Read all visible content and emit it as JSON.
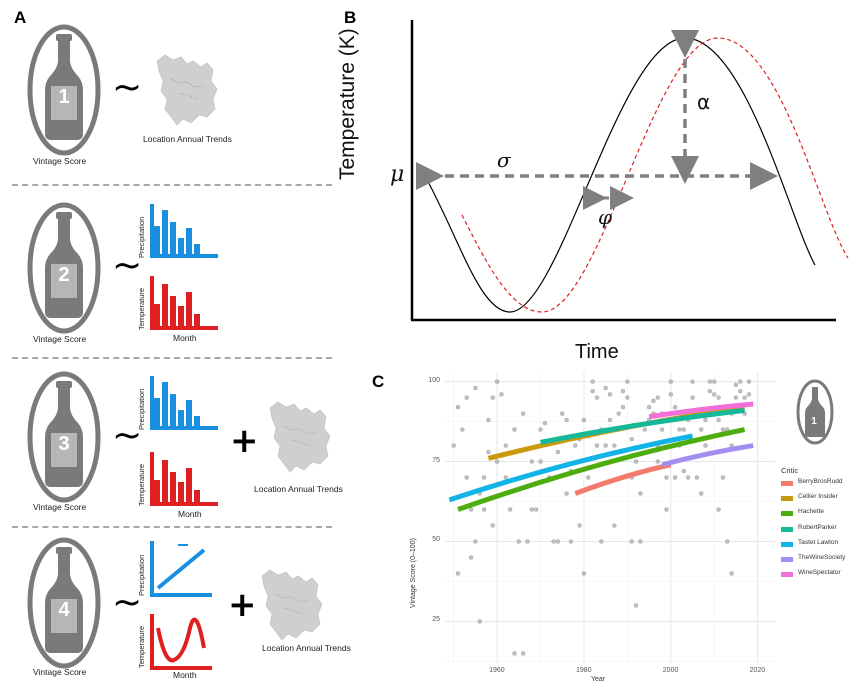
{
  "panels": {
    "a": {
      "letter": "A",
      "rows": [
        {
          "number": "1",
          "score_label": "Vintage Score",
          "map_label": "Location Annual Trends"
        },
        {
          "number": "2",
          "score_label": "Vintage Score",
          "precip_label": "Precipitation",
          "temp_label": "Temperature",
          "month_label": "Month"
        },
        {
          "number": "3",
          "score_label": "Vintage Score",
          "precip_label": "Precipitation",
          "temp_label": "Temperature",
          "month_label": "Month",
          "map_label": "Location Annual Trends"
        },
        {
          "number": "4",
          "score_label": "Vintage Score",
          "precip_label": "Precipitation",
          "temp_label": "Temperature",
          "month_label": "Month",
          "map_label": "Location Annual Trends"
        }
      ],
      "tilde": "~",
      "plus": "+"
    },
    "b": {
      "letter": "B",
      "ylabel": "Temperature (K)",
      "xlabel": "Time",
      "mu": "μ",
      "sigma": "σ",
      "alpha": "α",
      "phi": "φ"
    },
    "c": {
      "letter": "C",
      "xlabel": "Year",
      "ylabel": "Vintage Score (0–100)",
      "legend_title": "Critic",
      "bottle_number": "1"
    }
  },
  "colors": {
    "bottle": "#7a7a7a",
    "precip": "#1a8fe0",
    "temp": "#e02020",
    "map": "#cfcfcf"
  },
  "chart_data": {
    "type": "scatter",
    "xlabel": "Year",
    "ylabel": "Vintage Score (0–100)",
    "xlim": [
      1948,
      2024
    ],
    "ylim": [
      12,
      103
    ],
    "x_ticks": [
      1960,
      1980,
      2000,
      2020
    ],
    "y_ticks": [
      25,
      50,
      75,
      100
    ],
    "grid": true,
    "legend_position": "right",
    "legend_title": "Critic",
    "points": [
      [
        1950,
        80
      ],
      [
        1951,
        40
      ],
      [
        1952,
        85
      ],
      [
        1953,
        95
      ],
      [
        1953,
        70
      ],
      [
        1954,
        60
      ],
      [
        1954,
        45
      ],
      [
        1955,
        50
      ],
      [
        1955,
        98
      ],
      [
        1956,
        25
      ],
      [
        1956,
        65
      ],
      [
        1957,
        70
      ],
      [
        1957,
        60
      ],
      [
        1958,
        88
      ],
      [
        1959,
        55
      ],
      [
        1959,
        95
      ],
      [
        1960,
        75
      ],
      [
        1960,
        100
      ],
      [
        1961,
        96
      ],
      [
        1962,
        70
      ],
      [
        1963,
        60
      ],
      [
        1964,
        15
      ],
      [
        1964,
        85
      ],
      [
        1965,
        50
      ],
      [
        1966,
        15
      ],
      [
        1966,
        90
      ],
      [
        1967,
        50
      ],
      [
        1968,
        60
      ],
      [
        1969,
        60
      ],
      [
        1970,
        85
      ],
      [
        1970,
        75
      ],
      [
        1971,
        87
      ],
      [
        1972,
        70
      ],
      [
        1973,
        50
      ],
      [
        1974,
        50
      ],
      [
        1975,
        90
      ],
      [
        1976,
        88
      ],
      [
        1976,
        65
      ],
      [
        1977,
        50
      ],
      [
        1978,
        80
      ],
      [
        1979,
        82
      ],
      [
        1979,
        55
      ],
      [
        1980,
        40
      ],
      [
        1980,
        88
      ],
      [
        1981,
        83
      ],
      [
        1981,
        70
      ],
      [
        1982,
        100
      ],
      [
        1982,
        97
      ],
      [
        1983,
        95
      ],
      [
        1983,
        80
      ],
      [
        1984,
        50
      ],
      [
        1985,
        98
      ],
      [
        1985,
        80
      ],
      [
        1986,
        96
      ],
      [
        1986,
        88
      ],
      [
        1987,
        80
      ],
      [
        1987,
        55
      ],
      [
        1988,
        90
      ],
      [
        1988,
        85
      ],
      [
        1989,
        97
      ],
      [
        1989,
        92
      ],
      [
        1990,
        100
      ],
      [
        1990,
        95
      ],
      [
        1991,
        70
      ],
      [
        1991,
        50
      ],
      [
        1992,
        75
      ],
      [
        1992,
        30
      ],
      [
        1993,
        65
      ],
      [
        1993,
        50
      ],
      [
        1994,
        80
      ],
      [
        1994,
        85
      ],
      [
        1995,
        92
      ],
      [
        1995,
        88
      ],
      [
        1996,
        94
      ],
      [
        1996,
        90
      ],
      [
        1997,
        80
      ],
      [
        1997,
        75
      ],
      [
        1998,
        90
      ],
      [
        1998,
        85
      ],
      [
        1999,
        70
      ],
      [
        1999,
        60
      ],
      [
        2000,
        100
      ],
      [
        2000,
        96
      ],
      [
        2001,
        92
      ],
      [
        2001,
        70
      ],
      [
        2002,
        85
      ],
      [
        2002,
        80
      ],
      [
        2003,
        90
      ],
      [
        2003,
        85
      ],
      [
        2004,
        70
      ],
      [
        2004,
        88
      ],
      [
        2005,
        100
      ],
      [
        2005,
        95
      ],
      [
        2006,
        90
      ],
      [
        2006,
        70
      ],
      [
        2007,
        85
      ],
      [
        2007,
        65
      ],
      [
        2008,
        88
      ],
      [
        2008,
        80
      ],
      [
        2009,
        100
      ],
      [
        2009,
        97
      ],
      [
        2010,
        100
      ],
      [
        2010,
        96
      ],
      [
        2011,
        88
      ],
      [
        2011,
        60
      ],
      [
        2012,
        85
      ],
      [
        2012,
        70
      ],
      [
        2013,
        50
      ],
      [
        2013,
        85
      ],
      [
        2014,
        40
      ],
      [
        2014,
        90
      ],
      [
        2015,
        99
      ],
      [
        2015,
        95
      ],
      [
        2016,
        100
      ],
      [
        2016,
        97
      ],
      [
        2017,
        95
      ],
      [
        2017,
        90
      ],
      [
        2018,
        100
      ],
      [
        2018,
        96
      ],
      [
        1951,
        92
      ],
      [
        1958,
        78
      ],
      [
        1962,
        80
      ],
      [
        1968,
        75
      ],
      [
        1974,
        78
      ],
      [
        1977,
        72
      ],
      [
        1984,
        85
      ],
      [
        1991,
        82
      ],
      [
        1997,
        95
      ],
      [
        2003,
        72
      ],
      [
        2011,
        95
      ],
      [
        2014,
        80
      ]
    ],
    "series": [
      {
        "name": "BerryBrosRudd",
        "color": "#f27c6b",
        "x": [
          1978,
          2000
        ],
        "y": [
          65,
          74
        ]
      },
      {
        "name": "Cellier Insider",
        "color": "#c99a0e",
        "x": [
          1958,
          2017
        ],
        "y": [
          76,
          92
        ]
      },
      {
        "name": "Hachette",
        "color": "#4ead0e",
        "x": [
          1951,
          2017
        ],
        "y": [
          60,
          85
        ]
      },
      {
        "name": "RobertParker",
        "color": "#16b89a",
        "x": [
          1970,
          2017
        ],
        "y": [
          81,
          91
        ]
      },
      {
        "name": "Tastet Lawton",
        "color": "#12b4e8",
        "x": [
          1949,
          2005
        ],
        "y": [
          63,
          83
        ]
      },
      {
        "name": "TheWineSociety",
        "color": "#a38df0",
        "x": [
          1998,
          2019
        ],
        "y": [
          74,
          80
        ]
      },
      {
        "name": "WineSpectator",
        "color": "#f36fd8",
        "x": [
          1995,
          2019
        ],
        "y": [
          89,
          93
        ]
      }
    ]
  }
}
